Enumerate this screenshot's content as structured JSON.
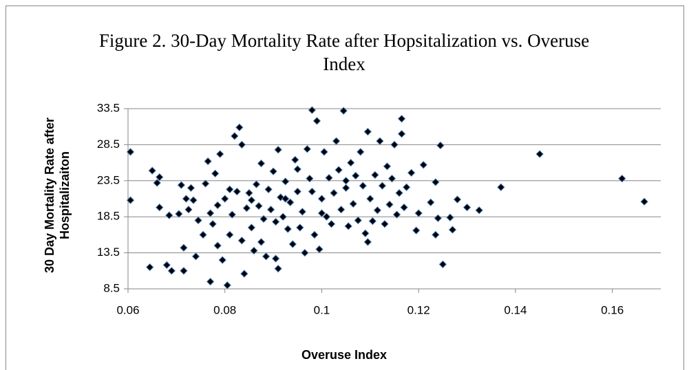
{
  "chart_data": {
    "type": "scatter",
    "title": "Figure 2. 30-Day Mortality Rate after Hopsitalization vs. Overuse Index",
    "x_label": "Overuse Index",
    "y_label": "30 Day Mortality Rate after Hospitalizaiton",
    "xlim": [
      0.06,
      0.17
    ],
    "xticks": [
      0.06,
      0.08,
      0.1,
      0.12,
      0.14,
      0.16
    ],
    "ylim": [
      8.5,
      33.5
    ],
    "yticks": [
      8.5,
      13.5,
      18.5,
      23.5,
      28.5,
      33.5
    ],
    "grid": true,
    "color": "#000000",
    "edge_color": "#4f81bd",
    "x": [
      0.0605,
      0.0605,
      0.0645,
      0.065,
      0.066,
      0.0665,
      0.0665,
      0.068,
      0.0685,
      0.069,
      0.0705,
      0.071,
      0.0715,
      0.0715,
      0.072,
      0.0725,
      0.073,
      0.0735,
      0.074,
      0.0745,
      0.0755,
      0.076,
      0.0765,
      0.077,
      0.077,
      0.0775,
      0.078,
      0.0785,
      0.079,
      0.0795,
      0.08,
      0.0805,
      0.081,
      0.0815,
      0.082,
      0.0825,
      0.083,
      0.0835,
      0.0835,
      0.084,
      0.0845,
      0.085,
      0.0855,
      0.086,
      0.0865,
      0.087,
      0.0875,
      0.088,
      0.0885,
      0.089,
      0.0895,
      0.09,
      0.0905,
      0.091,
      0.091,
      0.0915,
      0.092,
      0.0925,
      0.093,
      0.0935,
      0.094,
      0.0945,
      0.095,
      0.0955,
      0.096,
      0.0965,
      0.097,
      0.0975,
      0.098,
      0.0985,
      0.099,
      0.0995,
      0.1,
      0.1005,
      0.101,
      0.1015,
      0.102,
      0.1025,
      0.103,
      0.1035,
      0.104,
      0.1045,
      0.105,
      0.1055,
      0.106,
      0.1065,
      0.107,
      0.1075,
      0.108,
      0.1085,
      0.109,
      0.1095,
      0.11,
      0.1095,
      0.1105,
      0.111,
      0.1115,
      0.112,
      0.1125,
      0.113,
      0.1135,
      0.114,
      0.1145,
      0.115,
      0.1155,
      0.116,
      0.1165,
      0.1165,
      0.117,
      0.1175,
      0.1185,
      0.1195,
      0.12,
      0.121,
      0.1225,
      0.1235,
      0.1235,
      0.124,
      0.1245,
      0.125,
      0.1265,
      0.127,
      0.128,
      0.13,
      0.1325,
      0.137,
      0.145,
      0.162,
      0.1666,
      0.0875,
      0.0855,
      0.095,
      0.0925,
      0.105,
      0.1,
      0.081,
      0.0785,
      0.0905,
      0.098
    ],
    "values": [
      27.5,
      20.8,
      11.5,
      24.9,
      23.2,
      24.0,
      19.8,
      11.8,
      18.7,
      11.0,
      18.9,
      22.9,
      14.2,
      11.0,
      21.0,
      19.5,
      22.5,
      20.8,
      13.0,
      18.0,
      16.0,
      23.1,
      26.2,
      9.5,
      19.0,
      17.5,
      24.5,
      14.5,
      27.2,
      12.5,
      21.0,
      9.0,
      16.0,
      18.8,
      29.7,
      22.0,
      30.9,
      28.5,
      15.2,
      10.6,
      19.7,
      21.8,
      17.0,
      13.8,
      23.0,
      20.0,
      25.9,
      18.2,
      13.0,
      22.3,
      19.5,
      24.8,
      12.7,
      11.3,
      27.8,
      21.2,
      18.5,
      23.4,
      16.8,
      20.5,
      14.7,
      26.4,
      22.0,
      17.0,
      19.2,
      13.5,
      27.9,
      23.8,
      33.3,
      16.0,
      31.8,
      14.0,
      21.0,
      27.5,
      18.5,
      23.9,
      17.5,
      21.8,
      29.0,
      25.0,
      19.5,
      33.2,
      22.5,
      17.2,
      26.0,
      20.3,
      24.2,
      18.0,
      27.5,
      22.8,
      16.2,
      30.3,
      21.0,
      15.0,
      17.9,
      24.3,
      19.4,
      29.0,
      22.8,
      17.5,
      25.5,
      20.2,
      23.8,
      28.5,
      18.8,
      21.8,
      30.0,
      32.1,
      19.8,
      22.6,
      24.6,
      16.6,
      19.0,
      25.7,
      20.5,
      16.0,
      23.3,
      18.3,
      28.4,
      11.9,
      18.4,
      16.7,
      20.9,
      19.8,
      19.4,
      22.6,
      27.2,
      23.8,
      20.6,
      15.0,
      20.8,
      25.1,
      21.0,
      23.5,
      19.0,
      22.3,
      20.1,
      17.8,
      22.0
    ]
  }
}
